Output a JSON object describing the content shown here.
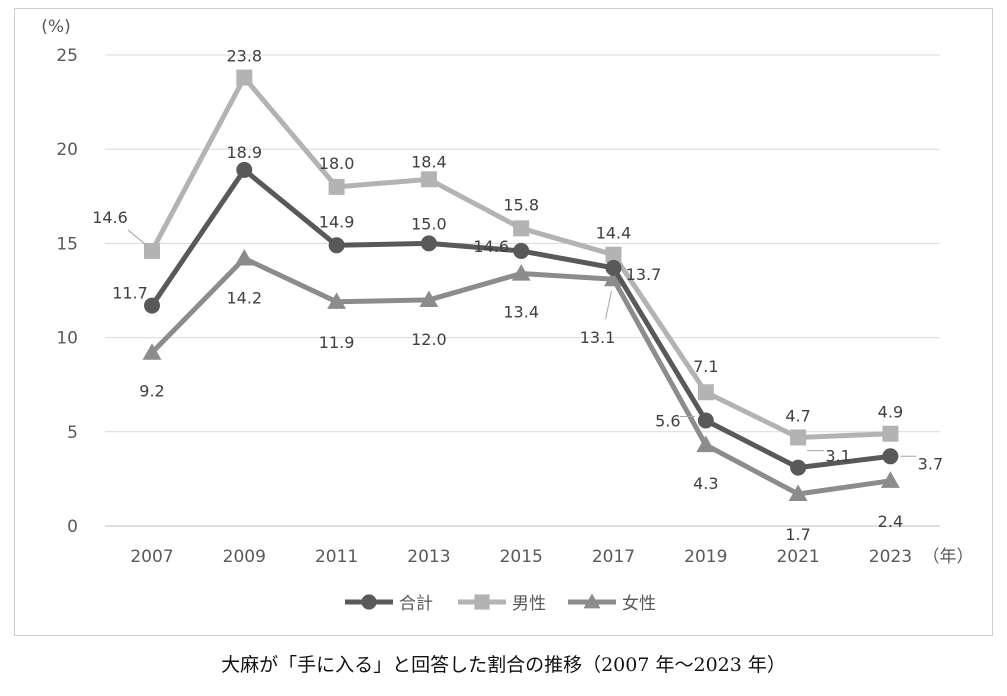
{
  "chart_data": {
    "type": "line",
    "y_unit_label": "(%)",
    "x_unit_label": "（年）",
    "ylim": [
      0,
      25
    ],
    "yticks": [
      0,
      5,
      10,
      15,
      20,
      25
    ],
    "grid": "horizontal",
    "legend_position": "bottom",
    "categories": [
      "2007",
      "2009",
      "2011",
      "2013",
      "2015",
      "2017",
      "2019",
      "2021",
      "2023"
    ],
    "series": [
      {
        "name": "合計",
        "marker": "circle",
        "color": "#595959",
        "values": [
          11.7,
          18.9,
          14.9,
          15.0,
          14.6,
          13.7,
          5.6,
          3.1,
          3.7
        ]
      },
      {
        "name": "男性",
        "marker": "square",
        "color": "#b3b3b3",
        "values": [
          14.6,
          23.8,
          18.0,
          18.4,
          15.8,
          14.4,
          7.1,
          4.7,
          4.9
        ]
      },
      {
        "name": "女性",
        "marker": "triangle",
        "color": "#8c8c8c",
        "values": [
          9.2,
          14.2,
          11.9,
          12.0,
          13.4,
          13.1,
          4.3,
          1.7,
          2.4
        ]
      }
    ]
  },
  "caption": "大麻が「手に入る」と回答した割合の推移（2007 年～2023 年）"
}
